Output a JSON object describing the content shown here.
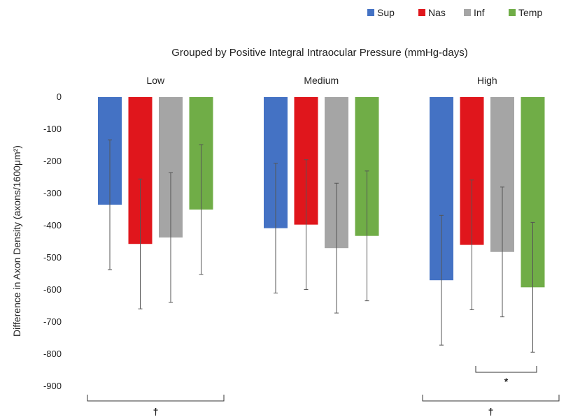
{
  "chart_data": {
    "type": "bar",
    "title": "Grouped by Positive Integral Intraocular Pressure (mmHg-days)",
    "ylabel": "Difference in Axon Density (axons/1600μm²)",
    "xlabel": "",
    "categories": [
      "Low",
      "Medium",
      "High"
    ],
    "ylim": [
      -900,
      0
    ],
    "yticks": [
      0,
      -100,
      -200,
      -300,
      -400,
      -500,
      -600,
      -700,
      -800,
      -900
    ],
    "legend_position": "top-right",
    "grid": false,
    "series": [
      {
        "name": "Sup",
        "color": "#4472C4",
        "values": [
          -335,
          -408,
          -570
        ],
        "errors": [
          202,
          202,
          202
        ]
      },
      {
        "name": "Nas",
        "color": "#E0161C",
        "values": [
          -457,
          -397,
          -460
        ],
        "errors": [
          202,
          202,
          202
        ]
      },
      {
        "name": "Inf",
        "color": "#A5A5A5",
        "values": [
          -437,
          -470,
          -482
        ],
        "errors": [
          202,
          202,
          202
        ]
      },
      {
        "name": "Temp",
        "color": "#70AD47",
        "values": [
          -350,
          -432,
          -592
        ],
        "errors": [
          202,
          202,
          202
        ]
      }
    ],
    "annotations": [
      {
        "label": "†",
        "type": "bracket",
        "category": "Low",
        "from_series": "Sup",
        "to_series": "Temp"
      },
      {
        "label": "†",
        "type": "bracket",
        "category": "High",
        "from_series": "Sup",
        "to_series": "Temp"
      },
      {
        "label": "*",
        "type": "bracket",
        "category": "High",
        "from_series": "Nas",
        "to_series": "Inf"
      }
    ]
  }
}
